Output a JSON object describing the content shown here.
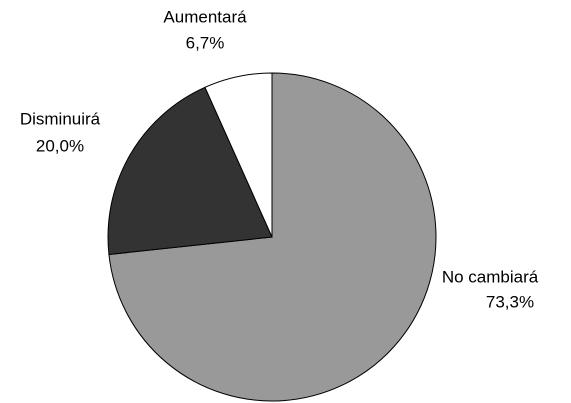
{
  "chart_data": {
    "type": "pie",
    "categories": [
      "No cambiará",
      "Disminuirá",
      "Aumentará"
    ],
    "values": [
      73.3,
      20.0,
      6.7
    ],
    "value_labels": [
      "73,3%",
      "20,0%",
      "6,7%"
    ],
    "colors": [
      "#999999",
      "#333333",
      "#ffffff"
    ]
  }
}
